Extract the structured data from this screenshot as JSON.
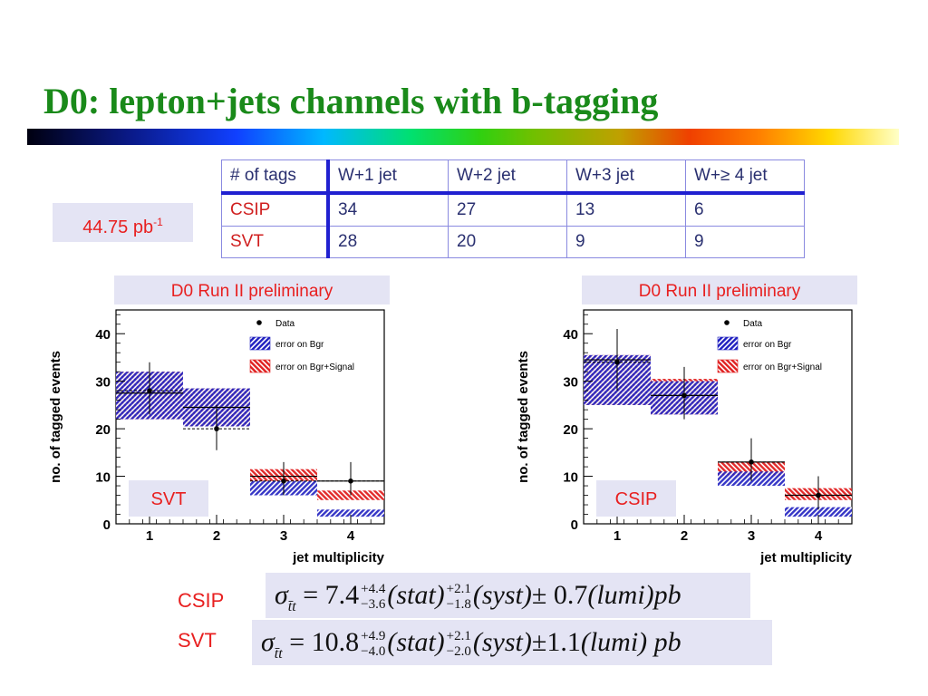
{
  "title": "D0: lepton+jets channels with b-tagging",
  "luminosity": {
    "value": "44.75 pb",
    "exponent": "-1"
  },
  "tag_table": {
    "header": [
      "# of tags",
      "W+1 jet",
      "W+2 jet",
      "W+3 jet",
      "W+≥ 4 jet"
    ],
    "rows": [
      {
        "label": "CSIP",
        "values": [
          "34",
          "27",
          "13",
          "6"
        ]
      },
      {
        "label": "SVT",
        "values": [
          "28",
          "20",
          "9",
          "9"
        ]
      }
    ]
  },
  "chart_data": [
    {
      "type": "bar",
      "panel_title": "D0 Run II preliminary",
      "tag_label": "SVT",
      "xlabel": "jet multiplicity",
      "ylabel": "no. of tagged events",
      "x_ticks": [
        "1",
        "2",
        "3",
        "4"
      ],
      "y_ticks": [
        "0",
        "10",
        "20",
        "30",
        "40"
      ],
      "ylim": [
        0,
        45
      ],
      "legend": {
        "placement": "top-right",
        "entries": [
          "Data",
          "error on Bgr",
          "error on Bgr+Signal"
        ]
      },
      "data": {
        "x": [
          1,
          2,
          3,
          4
        ],
        "y": [
          28,
          20,
          9,
          9
        ],
        "err_up": [
          6,
          5,
          4,
          4
        ],
        "err_down": [
          5,
          4.5,
          3,
          3
        ]
      },
      "bgr_band": [
        {
          "lo": 22,
          "hi": 32
        },
        {
          "lo": 20.5,
          "hi": 28.5
        },
        {
          "lo": 6,
          "hi": 9
        },
        {
          "lo": 1.5,
          "hi": 3
        }
      ],
      "bgr_signal_band": [
        {
          "lo": 22,
          "hi": 32
        },
        {
          "lo": 20.5,
          "hi": 28.5
        },
        {
          "lo": 9,
          "hi": 11.5
        },
        {
          "lo": 5,
          "hi": 7
        }
      ],
      "total_line": [
        27.5,
        24.5,
        10,
        9
      ]
    },
    {
      "type": "bar",
      "panel_title": "D0 Run II preliminary",
      "tag_label": "CSIP",
      "xlabel": "jet multiplicity",
      "ylabel": "no. of tagged events",
      "x_ticks": [
        "1",
        "2",
        "3",
        "4"
      ],
      "y_ticks": [
        "0",
        "10",
        "20",
        "30",
        "40"
      ],
      "ylim": [
        0,
        45
      ],
      "legend": {
        "placement": "top-right",
        "entries": [
          "Data",
          "error on Bgr",
          "error on Bgr+Signal"
        ]
      },
      "data": {
        "x": [
          1,
          2,
          3,
          4
        ],
        "y": [
          34,
          27,
          13,
          6
        ],
        "err_up": [
          7,
          6,
          5,
          4
        ],
        "err_down": [
          6,
          5,
          4,
          3
        ]
      },
      "bgr_band": [
        {
          "lo": 25,
          "hi": 35.5
        },
        {
          "lo": 23,
          "hi": 30
        },
        {
          "lo": 8,
          "hi": 11
        },
        {
          "lo": 1.5,
          "hi": 3.5
        }
      ],
      "bgr_signal_band": [
        {
          "lo": 25,
          "hi": 35.5
        },
        {
          "lo": 23,
          "hi": 30.5
        },
        {
          "lo": 10,
          "hi": 13
        },
        {
          "lo": 5,
          "hi": 7.5
        }
      ],
      "total_line": [
        34.5,
        27,
        13,
        6
      ]
    }
  ],
  "results": [
    {
      "label": "CSIP",
      "sigma": "σ",
      "sub": "t̄t",
      "value": "7.4",
      "stat_up": "+4.4",
      "stat_down": "−3.6",
      "stat": "(stat)",
      "syst_up": "+2.1",
      "syst_down": "−1.8",
      "syst": "(syst)",
      "lumi": "± 0.7",
      "lumi_text": "(lumi)pb"
    },
    {
      "label": "SVT",
      "sigma": "σ",
      "sub": "t̄t",
      "value": "10.8",
      "stat_up": "+4.9",
      "stat_down": "−4.0",
      "stat": "(stat)",
      "syst_up": "+2.1",
      "syst_down": "−2.0",
      "syst": "(syst)",
      "lumi": "±1.1",
      "lumi_text": "(lumi) pb"
    }
  ],
  "colors": {
    "title": "#1a8a1a",
    "label_red": "#e82020",
    "table_blue": "#2020d0",
    "bgr_band": "#2020c0",
    "signal_band": "#e02020",
    "panel_bg": "#e4e4f4"
  }
}
